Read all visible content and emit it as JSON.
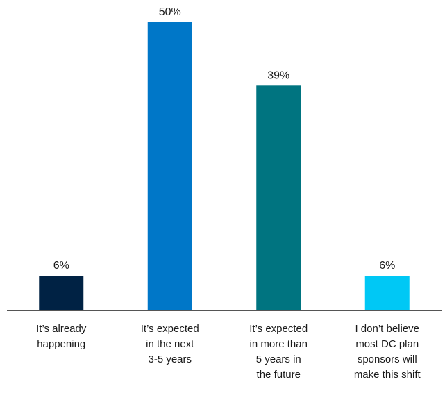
{
  "chart_data": {
    "type": "bar",
    "title": "",
    "xlabel": "",
    "ylabel": "",
    "ylim": [
      0,
      50
    ],
    "grid": false,
    "legend": "none",
    "categories": [
      [
        "It’s already",
        "happening"
      ],
      [
        "It’s expected",
        "in the next",
        "3-5 years"
      ],
      [
        "It’s expected",
        "in more than",
        "5 years in",
        "the future"
      ],
      [
        "I don’t believe",
        "most DC plan",
        "sponsors will",
        "make this shift"
      ]
    ],
    "values": [
      6,
      50,
      39,
      6
    ],
    "value_labels": [
      "6%",
      "50%",
      "39%",
      "6%"
    ],
    "colors": [
      "#002244",
      "#0077C8",
      "#007480",
      "#00C8F5"
    ],
    "axis_color": "#555555"
  }
}
